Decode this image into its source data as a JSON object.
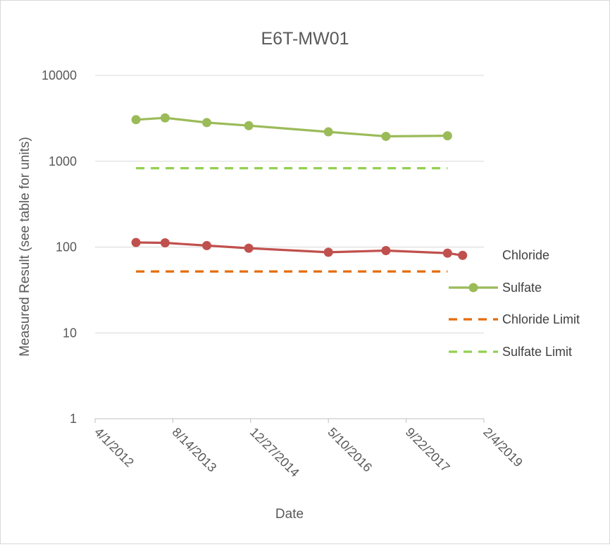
{
  "chart_data": {
    "type": "line",
    "title": "E6T-MW01",
    "xlabel": "Date",
    "ylabel": "Measured Result (see table for units)",
    "y_scale": "log",
    "ylim": [
      1,
      10000
    ],
    "y_ticks": [
      "1",
      "10",
      "100",
      "1000",
      "10000"
    ],
    "xlim": [
      "2012-04-01",
      "2019-02-04"
    ],
    "x_ticks": [
      "4/1/2012",
      "8/14/2013",
      "12/27/2014",
      "5/10/2016",
      "9/22/2017",
      "2/4/2019"
    ],
    "grid": "horizontal",
    "legend_position": "right",
    "series": [
      {
        "name": "Chloride",
        "style": "solid-markers",
        "color": "#c0504d",
        "x": [
          "2012-12-20",
          "2013-06-25",
          "2014-03-20",
          "2014-12-15",
          "2016-05-10",
          "2017-05-15",
          "2018-06-15",
          "2018-09-20"
        ],
        "y": [
          113,
          112,
          104,
          97,
          87,
          91,
          85,
          80
        ]
      },
      {
        "name": "Sulfate",
        "style": "solid-markers",
        "color": "#9bbb59",
        "x": [
          "2012-12-20",
          "2013-06-25",
          "2014-03-20",
          "2014-12-15",
          "2016-05-10",
          "2017-05-15",
          "2018-06-15"
        ],
        "y": [
          3050,
          3200,
          2820,
          2600,
          2200,
          1950,
          1980
        ]
      },
      {
        "name": "Chloride Limit",
        "style": "dashed",
        "color": "#e46c0a",
        "x": [
          "2012-12-20",
          "2018-06-15"
        ],
        "y": [
          52,
          52
        ]
      },
      {
        "name": "Sulfate Limit",
        "style": "dashed",
        "color": "#92d050",
        "x": [
          "2012-12-20",
          "2018-06-15"
        ],
        "y": [
          830,
          830
        ]
      }
    ]
  }
}
